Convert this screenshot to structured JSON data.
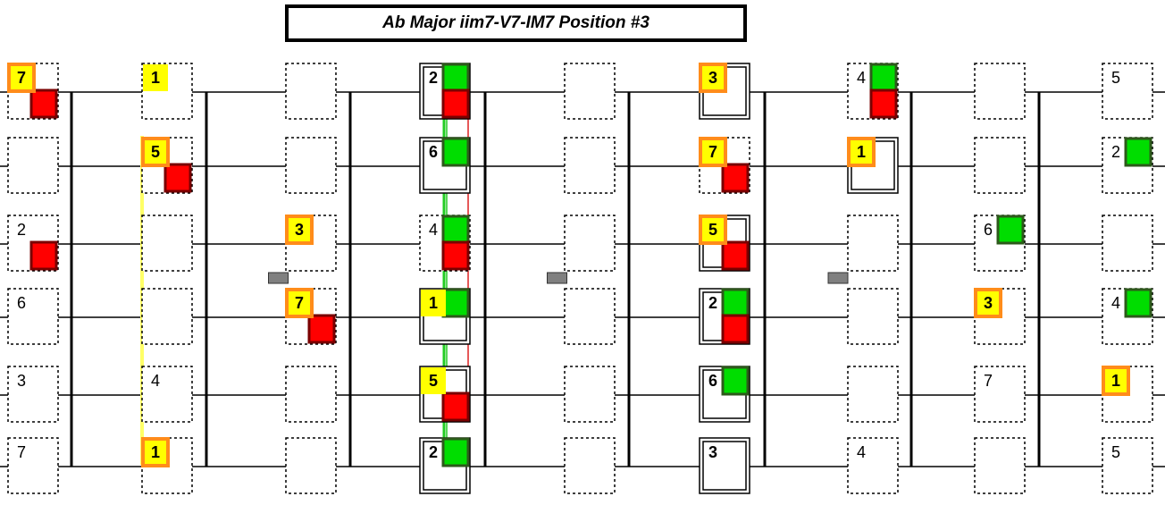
{
  "title": "Ab Major iim7-V7-IM7 Position #3",
  "colors": {
    "yellow": "#ffff00",
    "orange": "#ff8c1a",
    "green": "#00dd00",
    "green_border": "#2d5a1b",
    "red": "#ff0000",
    "red_border": "#7a0000",
    "line_green": "#22cc22",
    "line_red": "#dd2222",
    "line_yellow": "#ffff66",
    "inlay": "#808080"
  },
  "strings": 6,
  "frets": 9,
  "inlay_positions": [
    3,
    5,
    7
  ],
  "cells": [
    {
      "fret": 1,
      "string": 1,
      "label": "7",
      "style": "yellow-orange",
      "red": true
    },
    {
      "fret": 1,
      "string": 2,
      "label": "",
      "style": "dotted"
    },
    {
      "fret": 1,
      "string": 3,
      "label": "2",
      "style": "dotted",
      "red": true
    },
    {
      "fret": 1,
      "string": 4,
      "label": "6",
      "style": "dotted"
    },
    {
      "fret": 1,
      "string": 5,
      "label": "3",
      "style": "dotted"
    },
    {
      "fret": 1,
      "string": 6,
      "label": "7",
      "style": "dotted"
    },
    {
      "fret": 2,
      "string": 1,
      "label": "1",
      "style": "yellow"
    },
    {
      "fret": 2,
      "string": 2,
      "label": "5",
      "style": "yellow-orange",
      "red": true
    },
    {
      "fret": 2,
      "string": 3,
      "label": "",
      "style": "dotted"
    },
    {
      "fret": 2,
      "string": 4,
      "label": "",
      "style": "dotted"
    },
    {
      "fret": 2,
      "string": 5,
      "label": "4",
      "style": "dotted"
    },
    {
      "fret": 2,
      "string": 6,
      "label": "1",
      "style": "yellow-orange"
    },
    {
      "fret": 3,
      "string": 1,
      "label": "",
      "style": "dotted"
    },
    {
      "fret": 3,
      "string": 2,
      "label": "",
      "style": "dotted"
    },
    {
      "fret": 3,
      "string": 3,
      "label": "3",
      "style": "yellow-orange"
    },
    {
      "fret": 3,
      "string": 4,
      "label": "7",
      "style": "yellow-orange",
      "red": true
    },
    {
      "fret": 3,
      "string": 5,
      "label": "",
      "style": "dotted"
    },
    {
      "fret": 3,
      "string": 6,
      "label": "",
      "style": "dotted"
    },
    {
      "fret": 4,
      "string": 1,
      "label": "2",
      "style": "double",
      "green": true,
      "red": true
    },
    {
      "fret": 4,
      "string": 2,
      "label": "6",
      "style": "double",
      "green": true
    },
    {
      "fret": 4,
      "string": 3,
      "label": "4",
      "style": "dotted",
      "green": true,
      "red": true
    },
    {
      "fret": 4,
      "string": 4,
      "label": "1",
      "style": "double-yellow",
      "green": true
    },
    {
      "fret": 4,
      "string": 5,
      "label": "5",
      "style": "double-yellow",
      "red": true
    },
    {
      "fret": 4,
      "string": 6,
      "label": "2",
      "style": "double",
      "green": true
    },
    {
      "fret": 5,
      "string": 1,
      "label": "",
      "style": "dotted"
    },
    {
      "fret": 5,
      "string": 2,
      "label": "",
      "style": "dotted"
    },
    {
      "fret": 5,
      "string": 3,
      "label": "",
      "style": "dotted"
    },
    {
      "fret": 5,
      "string": 4,
      "label": "",
      "style": "dotted"
    },
    {
      "fret": 5,
      "string": 5,
      "label": "",
      "style": "dotted"
    },
    {
      "fret": 5,
      "string": 6,
      "label": "",
      "style": "dotted"
    },
    {
      "fret": 6,
      "string": 1,
      "label": "3",
      "style": "double-yellow-orange"
    },
    {
      "fret": 6,
      "string": 2,
      "label": "7",
      "style": "dotted-yellow-orange",
      "red": true
    },
    {
      "fret": 6,
      "string": 3,
      "label": "5",
      "style": "double-yellow-orange",
      "red": true
    },
    {
      "fret": 6,
      "string": 4,
      "label": "2",
      "style": "double",
      "green": true,
      "red": true
    },
    {
      "fret": 6,
      "string": 5,
      "label": "6",
      "style": "double",
      "green": true
    },
    {
      "fret": 6,
      "string": 6,
      "label": "3",
      "style": "double"
    },
    {
      "fret": 7,
      "string": 1,
      "label": "4",
      "style": "dotted",
      "green": true,
      "red": true
    },
    {
      "fret": 7,
      "string": 2,
      "label": "1",
      "style": "double-yellow-orange"
    },
    {
      "fret": 7,
      "string": 3,
      "label": "",
      "style": "dotted"
    },
    {
      "fret": 7,
      "string": 4,
      "label": "",
      "style": "dotted"
    },
    {
      "fret": 7,
      "string": 5,
      "label": "",
      "style": "dotted"
    },
    {
      "fret": 7,
      "string": 6,
      "label": "4",
      "style": "dotted"
    },
    {
      "fret": 8,
      "string": 1,
      "label": "",
      "style": "dotted"
    },
    {
      "fret": 8,
      "string": 2,
      "label": "",
      "style": "dotted"
    },
    {
      "fret": 8,
      "string": 3,
      "label": "6",
      "style": "dotted",
      "green": true
    },
    {
      "fret": 8,
      "string": 4,
      "label": "3",
      "style": "yellow-orange"
    },
    {
      "fret": 8,
      "string": 5,
      "label": "7",
      "style": "dotted"
    },
    {
      "fret": 8,
      "string": 6,
      "label": "",
      "style": "dotted"
    },
    {
      "fret": 9,
      "string": 1,
      "label": "5",
      "style": "dotted"
    },
    {
      "fret": 9,
      "string": 2,
      "label": "2",
      "style": "dotted",
      "green": true
    },
    {
      "fret": 9,
      "string": 3,
      "label": "",
      "style": "dotted"
    },
    {
      "fret": 9,
      "string": 4,
      "label": "4",
      "style": "dotted",
      "green": true
    },
    {
      "fret": 9,
      "string": 5,
      "label": "1",
      "style": "yellow-orange"
    },
    {
      "fret": 9,
      "string": 6,
      "label": "5",
      "style": "dotted"
    }
  ]
}
